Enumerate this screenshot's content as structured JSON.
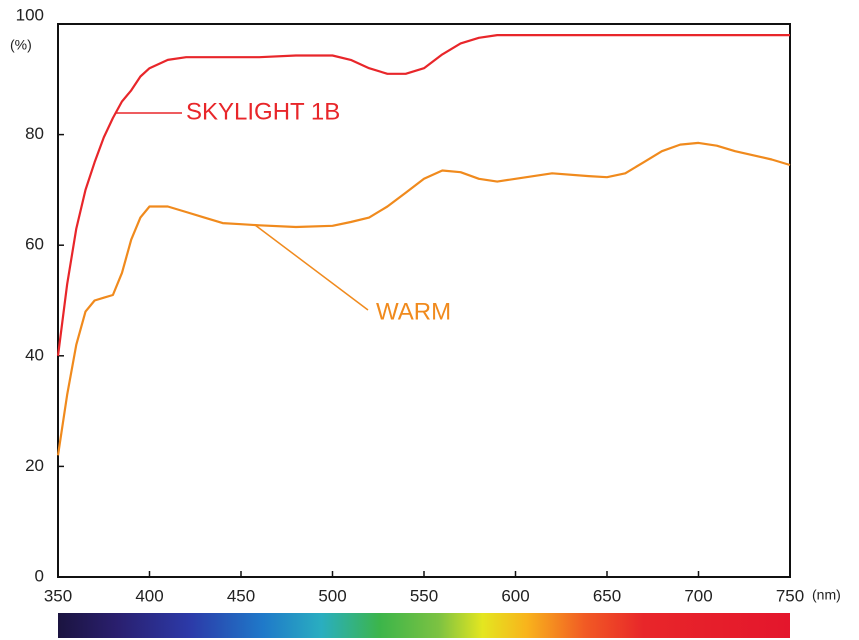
{
  "chart_data": {
    "type": "line",
    "xlabel": "(nm)",
    "ylabel": "(%)",
    "x": [
      350,
      355,
      360,
      365,
      370,
      375,
      380,
      385,
      390,
      395,
      400,
      410,
      420,
      430,
      440,
      450,
      460,
      480,
      500,
      510,
      520,
      530,
      540,
      550,
      560,
      570,
      580,
      590,
      600,
      620,
      640,
      650,
      660,
      670,
      680,
      690,
      700,
      710,
      720,
      740,
      750
    ],
    "series": [
      {
        "name": "SKYLIGHT 1B",
        "color": "#e8262a",
        "values": [
          40,
          53,
          63,
          70,
          75,
          79.5,
          83,
          86,
          88,
          90.5,
          92,
          93.5,
          94,
          94,
          94,
          94,
          94,
          94.3,
          94.3,
          93.5,
          92,
          91,
          91,
          92,
          94.5,
          96.5,
          97.5,
          98,
          98,
          98,
          98,
          98,
          98,
          98,
          98,
          98,
          98,
          98,
          98,
          98,
          98
        ]
      },
      {
        "name": "WARM",
        "color": "#f08a1d",
        "values": [
          22,
          33,
          42,
          48,
          50,
          50.5,
          51,
          55,
          61,
          65,
          67,
          67,
          66,
          65,
          64,
          63.8,
          63.6,
          63.3,
          63.5,
          64.2,
          65,
          67,
          69.5,
          72,
          73.5,
          73.2,
          72,
          71.5,
          72,
          73,
          72.5,
          72.3,
          73,
          75,
          77,
          78.2,
          78.5,
          78,
          77,
          75.5,
          74.5
        ]
      }
    ],
    "xlim": [
      350,
      750
    ],
    "ylim": [
      0,
      100
    ],
    "xticks": [
      350,
      400,
      450,
      500,
      550,
      600,
      650,
      700,
      750
    ],
    "yticks": [
      0,
      20,
      40,
      60,
      80,
      100
    ],
    "grid": false
  }
}
